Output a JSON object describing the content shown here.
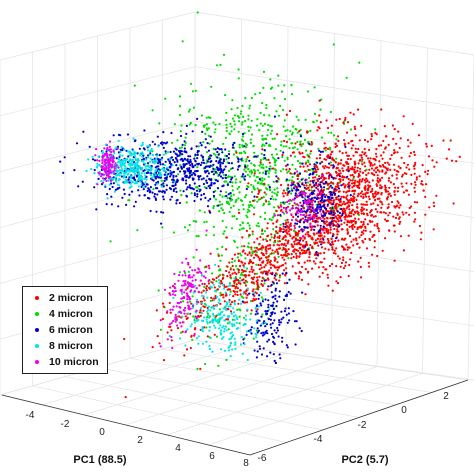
{
  "chart_data": {
    "type": "scatter",
    "dimensions": 3,
    "title": "",
    "xlabel": "PC1 (88.5)",
    "ylabel": "PC2 (5.7)",
    "zlabel": "",
    "x_ticks": [
      "-4",
      "-2",
      "0",
      "2",
      "4",
      "6",
      "8"
    ],
    "y_ticks": [
      "-6",
      "-4",
      "-2",
      "0",
      "2"
    ],
    "grid": true,
    "legend_position": "left",
    "series": [
      {
        "name": "2 micron",
        "color": "#ff0000"
      },
      {
        "name": "4 micron",
        "color": "#00dd00"
      },
      {
        "name": "6 micron",
        "color": "#0000cc"
      },
      {
        "name": "8 micron",
        "color": "#00e5e5"
      },
      {
        "name": "10 micron",
        "color": "#ee00ee"
      }
    ]
  }
}
